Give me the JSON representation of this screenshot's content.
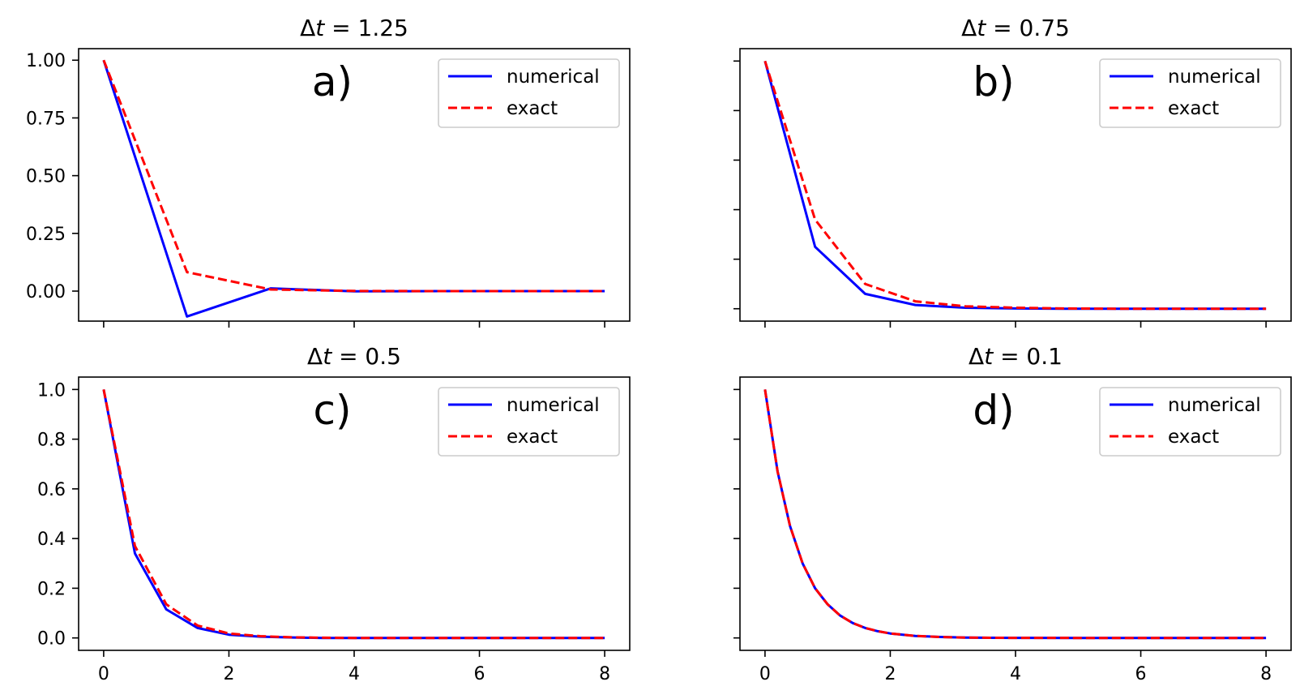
{
  "colors": {
    "numerical": "#0000ff",
    "exact": "#ff0000"
  },
  "legend": {
    "numerical_label": "numerical",
    "exact_label": "exact",
    "placement": "upper right"
  },
  "chart_data": [
    {
      "type": "line",
      "delta_symbol": "Δ",
      "title_var": "t",
      "title_eq": " = 1.25",
      "panel_label": "a)",
      "xlim": [
        -0.4,
        8.4
      ],
      "ylim": [
        -0.13,
        1.05
      ],
      "xticks": [
        0,
        2,
        4,
        6,
        8
      ],
      "xticklabels": [
        "",
        "",
        "",
        "",
        ""
      ],
      "yticks": [
        0.0,
        0.25,
        0.5,
        0.75,
        1.0
      ],
      "yticklabels": [
        "0.00",
        "0.25",
        "0.50",
        "0.75",
        "1.00"
      ],
      "series": [
        {
          "name": "numerical",
          "style": "solid",
          "x": [
            0,
            1.33,
            2.67,
            4,
            5.33,
            6.67,
            8
          ],
          "y": [
            1.0,
            -0.11,
            0.012,
            -0.001,
            0.0,
            0.0,
            0.0
          ]
        },
        {
          "name": "exact",
          "style": "dashed",
          "x": [
            0,
            1.33,
            2.67,
            4,
            5.33,
            6.67,
            8
          ],
          "y": [
            1.0,
            0.082,
            0.007,
            0.0006,
            0.0,
            0.0,
            0.0
          ]
        }
      ]
    },
    {
      "type": "line",
      "delta_symbol": "Δ",
      "title_var": "t",
      "title_eq": " = 0.75",
      "panel_label": "b)",
      "xlim": [
        -0.4,
        8.4
      ],
      "ylim": [
        -0.05,
        1.05
      ],
      "xticks": [
        0,
        2,
        4,
        6,
        8
      ],
      "xticklabels": [
        "",
        "",
        "",
        "",
        ""
      ],
      "yticks": [
        0.0,
        0.2,
        0.4,
        0.6,
        0.8,
        1.0
      ],
      "yticklabels": [
        "",
        "",
        "",
        "",
        "",
        ""
      ],
      "series": [
        {
          "name": "numerical",
          "style": "solid",
          "x": [
            0,
            0.8,
            1.6,
            2.4,
            3.2,
            4,
            4.8,
            5.6,
            6.4,
            7.2,
            8
          ],
          "y": [
            1.0,
            0.25,
            0.06,
            0.015,
            0.004,
            0.001,
            0.0,
            0.0,
            0.0,
            0.0,
            0.0
          ]
        },
        {
          "name": "exact",
          "style": "dashed",
          "x": [
            0,
            0.8,
            1.6,
            2.4,
            3.2,
            4,
            4.8,
            5.6,
            6.4,
            7.2,
            8
          ],
          "y": [
            1.0,
            0.36,
            0.1,
            0.03,
            0.01,
            0.004,
            0.001,
            0.0,
            0.0,
            0.0,
            0.0
          ]
        }
      ]
    },
    {
      "type": "line",
      "delta_symbol": "Δ",
      "title_var": "t",
      "title_eq": " = 0.5",
      "panel_label": "c)",
      "xlim": [
        -0.4,
        8.4
      ],
      "ylim": [
        -0.05,
        1.05
      ],
      "xticks": [
        0,
        2,
        4,
        6,
        8
      ],
      "xticklabels": [
        "0",
        "2",
        "4",
        "6",
        "8"
      ],
      "yticks": [
        0.0,
        0.2,
        0.4,
        0.6,
        0.8,
        1.0
      ],
      "yticklabels": [
        "0.0",
        "0.2",
        "0.4",
        "0.6",
        "0.8",
        "1.0"
      ],
      "series": [
        {
          "name": "numerical",
          "style": "solid",
          "x": [
            0,
            0.5,
            1,
            1.5,
            2,
            2.5,
            3,
            3.5,
            4,
            4.5,
            5,
            5.5,
            6,
            6.5,
            7,
            7.5,
            8
          ],
          "y": [
            1.0,
            0.34,
            0.115,
            0.04,
            0.013,
            0.005,
            0.002,
            0.0,
            0.0,
            0.0,
            0.0,
            0.0,
            0.0,
            0.0,
            0.0,
            0.0,
            0.0
          ]
        },
        {
          "name": "exact",
          "style": "dashed",
          "x": [
            0,
            0.5,
            1,
            1.5,
            2,
            2.5,
            3,
            3.5,
            4,
            4.5,
            5,
            5.5,
            6,
            6.5,
            7,
            7.5,
            8
          ],
          "y": [
            1.0,
            0.37,
            0.135,
            0.05,
            0.018,
            0.007,
            0.0025,
            0.001,
            0.0,
            0.0,
            0.0,
            0.0,
            0.0,
            0.0,
            0.0,
            0.0,
            0.0
          ]
        }
      ]
    },
    {
      "type": "line",
      "delta_symbol": "Δ",
      "title_var": "t",
      "title_eq": " = 0.1",
      "panel_label": "d)",
      "xlim": [
        -0.4,
        8.4
      ],
      "ylim": [
        -0.05,
        1.05
      ],
      "xticks": [
        0,
        2,
        4,
        6,
        8
      ],
      "xticklabels": [
        "0",
        "2",
        "4",
        "6",
        "8"
      ],
      "yticks": [
        0.0,
        0.2,
        0.4,
        0.6,
        0.8,
        1.0
      ],
      "yticklabels": [
        "",
        "",
        "",
        "",
        "",
        ""
      ],
      "series": [
        {
          "name": "numerical",
          "style": "solid",
          "x": [
            0,
            0.2,
            0.4,
            0.6,
            0.8,
            1.0,
            1.2,
            1.4,
            1.6,
            1.8,
            2.0,
            2.4,
            2.8,
            3.2,
            3.6,
            4.0,
            5.0,
            6.0,
            7.0,
            8.0
          ],
          "y": [
            1.0,
            0.67,
            0.45,
            0.3,
            0.2,
            0.135,
            0.09,
            0.06,
            0.04,
            0.027,
            0.018,
            0.008,
            0.0037,
            0.0017,
            0.0007,
            0.0003,
            0.0,
            0.0,
            0.0,
            0.0
          ]
        },
        {
          "name": "exact",
          "style": "dashed",
          "x": [
            0,
            0.2,
            0.4,
            0.6,
            0.8,
            1.0,
            1.2,
            1.4,
            1.6,
            1.8,
            2.0,
            2.4,
            2.8,
            3.2,
            3.6,
            4.0,
            5.0,
            6.0,
            7.0,
            8.0
          ],
          "y": [
            1.0,
            0.67,
            0.45,
            0.3,
            0.2,
            0.135,
            0.09,
            0.06,
            0.04,
            0.027,
            0.018,
            0.008,
            0.0037,
            0.0017,
            0.0007,
            0.0003,
            0.0,
            0.0,
            0.0,
            0.0
          ]
        }
      ]
    }
  ]
}
